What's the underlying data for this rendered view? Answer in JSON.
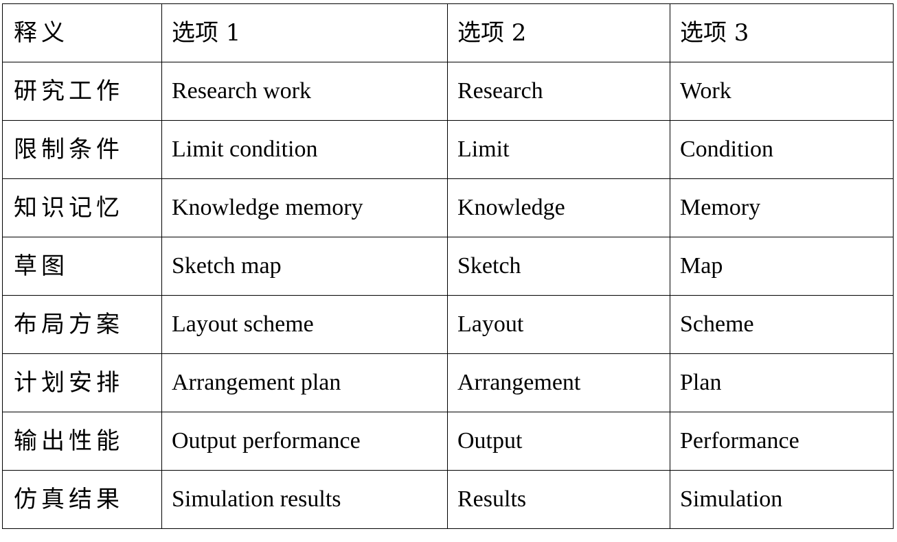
{
  "table": {
    "headers": [
      "释义",
      "选项 1",
      "选项 2",
      "选项 3"
    ],
    "rows": [
      [
        "研究工作",
        "Research work",
        "Research",
        "Work"
      ],
      [
        "限制条件",
        "Limit condition",
        "Limit",
        "Condition"
      ],
      [
        "知识记忆",
        "Knowledge memory",
        "Knowledge",
        "Memory"
      ],
      [
        "草图",
        "Sketch map",
        "Sketch",
        "Map"
      ],
      [
        "布局方案",
        "Layout scheme",
        "Layout",
        "Scheme"
      ],
      [
        "计划安排",
        "Arrangement plan",
        "Arrangement",
        "Plan"
      ],
      [
        "输出性能",
        "Output performance",
        "Output",
        "Performance"
      ],
      [
        "仿真结果",
        "Simulation results",
        "Results",
        "Simulation"
      ]
    ]
  }
}
